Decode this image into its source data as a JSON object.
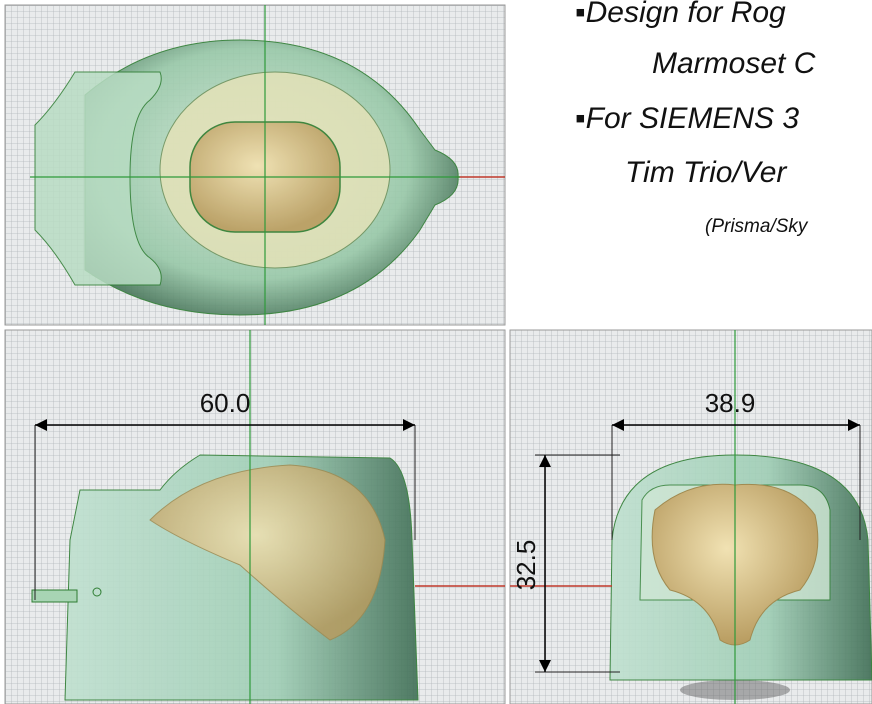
{
  "notes": [
    "▪Design for Rog",
    "Marmoset C",
    "▪For SIEMENS 3",
    "Tim Trio/Ver",
    "(Prisma/Sky"
  ],
  "dimensions": {
    "side_width": "60.0",
    "front_width": "38.9",
    "front_height": "32.5"
  }
}
